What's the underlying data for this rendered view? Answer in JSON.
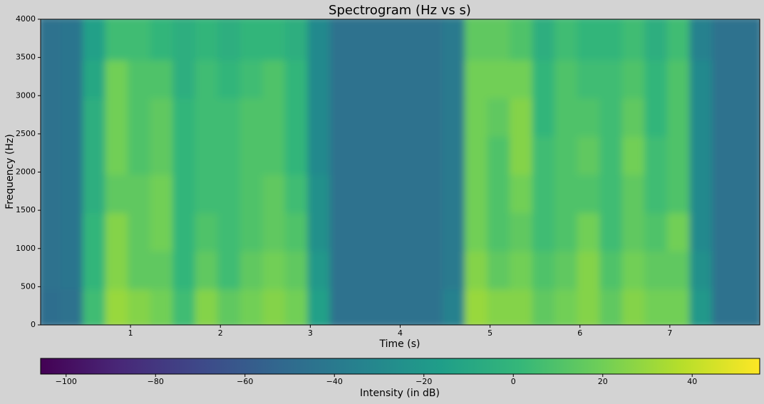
{
  "chart_data": {
    "type": "heatmap",
    "title": "Spectrogram (Hz vs s)",
    "xlabel": "Time (s)",
    "ylabel": "Frequency (Hz)",
    "xlim": [
      0,
      8
    ],
    "xticks": [
      1,
      2,
      3,
      4,
      5,
      6,
      7
    ],
    "ylim": [
      0,
      4000
    ],
    "yticks": [
      0,
      500,
      1000,
      1500,
      2000,
      2500,
      3000,
      3500,
      4000
    ],
    "colormap": "viridis",
    "colorbar_label": "Intensity (in dB)",
    "clim": [
      -105.7,
      55.1
    ],
    "cticks": [
      {
        "value": -100,
        "label": "−100"
      },
      {
        "value": -80,
        "label": "−80"
      },
      {
        "value": -60,
        "label": "−60"
      },
      {
        "value": -40,
        "label": "−40"
      },
      {
        "value": -20,
        "label": "−20"
      },
      0,
      20,
      40
    ],
    "z": [
      [
        -48,
        -45,
        5,
        30,
        25,
        20,
        5,
        25,
        15,
        20,
        25,
        20,
        -15,
        -45,
        -45,
        -45,
        -45,
        -45,
        -35,
        30,
        25,
        25,
        15,
        20,
        25,
        15,
        25,
        20,
        20,
        -20,
        -45,
        -45
      ],
      [
        -45,
        -44,
        0,
        25,
        15,
        15,
        0,
        15,
        5,
        15,
        20,
        15,
        -20,
        -45,
        -45,
        -45,
        -45,
        -45,
        -40,
        25,
        15,
        20,
        10,
        15,
        25,
        10,
        20,
        15,
        15,
        -25,
        -45,
        -45
      ],
      [
        -45,
        -44,
        0,
        25,
        15,
        20,
        0,
        10,
        5,
        10,
        15,
        10,
        -25,
        -45,
        -45,
        -45,
        -45,
        -45,
        -40,
        20,
        10,
        15,
        5,
        10,
        20,
        5,
        15,
        10,
        20,
        -30,
        -45,
        -45
      ],
      [
        -45,
        -44,
        -5,
        15,
        15,
        20,
        0,
        5,
        5,
        10,
        15,
        5,
        -25,
        -45,
        -45,
        -45,
        -45,
        -45,
        -40,
        20,
        10,
        20,
        5,
        10,
        10,
        5,
        15,
        5,
        10,
        -30,
        -45,
        -45
      ],
      [
        -45,
        -44,
        -5,
        20,
        10,
        15,
        0,
        5,
        5,
        10,
        10,
        0,
        -30,
        -45,
        -45,
        -45,
        -45,
        -45,
        -40,
        20,
        10,
        25,
        5,
        10,
        15,
        5,
        20,
        5,
        10,
        -30,
        -45,
        -45
      ],
      [
        -45,
        -44,
        -5,
        20,
        10,
        15,
        0,
        5,
        5,
        10,
        10,
        0,
        -30,
        -45,
        -45,
        -45,
        -45,
        -45,
        -40,
        20,
        15,
        25,
        0,
        10,
        10,
        5,
        15,
        0,
        10,
        -30,
        -45,
        -45
      ],
      [
        -45,
        -44,
        -10,
        20,
        10,
        10,
        -5,
        5,
        0,
        5,
        10,
        0,
        -30,
        -45,
        -45,
        -45,
        -45,
        -45,
        -40,
        20,
        20,
        20,
        0,
        10,
        5,
        5,
        10,
        0,
        10,
        -30,
        -45,
        -45
      ],
      [
        -45,
        -44,
        -15,
        5,
        5,
        0,
        -5,
        0,
        -5,
        0,
        0,
        -5,
        -30,
        -45,
        -45,
        -45,
        -45,
        -45,
        -40,
        15,
        15,
        10,
        -5,
        5,
        0,
        0,
        5,
        -5,
        5,
        -35,
        -45,
        -45
      ]
    ]
  }
}
